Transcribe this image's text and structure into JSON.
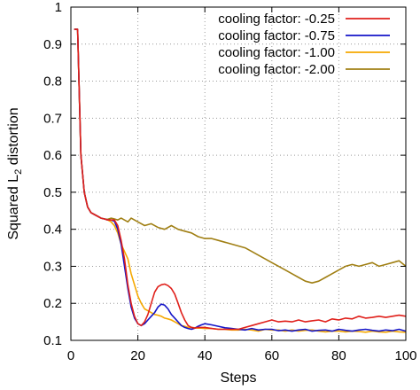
{
  "chart_data": {
    "type": "line",
    "title": "",
    "xlabel": "Steps",
    "ylabel": "Squared L₂ distortion",
    "xlim": [
      0,
      100
    ],
    "ylim": [
      0.1,
      1.0
    ],
    "xticks": [
      0,
      20,
      40,
      60,
      80,
      100
    ],
    "yticks": [
      0.1,
      0.2,
      0.3,
      0.4,
      0.5,
      0.6,
      0.7,
      0.8,
      0.9,
      1.0
    ],
    "ytick_labels": [
      "0.1",
      "0.2",
      "0.3",
      "0.4",
      "0.5",
      "0.6",
      "0.7",
      "0.8",
      "0.9",
      "1"
    ],
    "grid": "dotted",
    "legend_position": "top-right",
    "series": [
      {
        "name": "cooling factor: -0.25",
        "color": "#e0201b",
        "x": [
          1,
          2,
          3,
          4,
          5,
          6,
          7,
          8,
          9,
          10,
          11,
          12,
          13,
          14,
          15,
          16,
          17,
          18,
          19,
          20,
          21,
          22,
          23,
          24,
          25,
          26,
          27,
          28,
          29,
          30,
          31,
          32,
          33,
          34,
          35,
          36,
          37,
          38,
          39,
          40,
          42,
          44,
          46,
          48,
          50,
          52,
          54,
          56,
          58,
          60,
          62,
          64,
          66,
          68,
          70,
          72,
          74,
          76,
          78,
          80,
          82,
          84,
          86,
          88,
          90,
          92,
          94,
          96,
          98,
          100
        ],
        "y": [
          0.94,
          0.94,
          0.6,
          0.5,
          0.46,
          0.445,
          0.44,
          0.435,
          0.43,
          0.428,
          0.425,
          0.425,
          0.425,
          0.41,
          0.37,
          0.32,
          0.25,
          0.2,
          0.165,
          0.145,
          0.14,
          0.15,
          0.17,
          0.2,
          0.23,
          0.245,
          0.25,
          0.252,
          0.248,
          0.24,
          0.225,
          0.2,
          0.175,
          0.155,
          0.14,
          0.135,
          0.133,
          0.135,
          0.135,
          0.135,
          0.132,
          0.13,
          0.13,
          0.13,
          0.13,
          0.135,
          0.14,
          0.145,
          0.15,
          0.155,
          0.15,
          0.152,
          0.15,
          0.155,
          0.15,
          0.153,
          0.155,
          0.15,
          0.158,
          0.155,
          0.16,
          0.158,
          0.165,
          0.16,
          0.162,
          0.165,
          0.162,
          0.165,
          0.168,
          0.165
        ]
      },
      {
        "name": "cooling factor: -0.75",
        "color": "#1515c8",
        "x": [
          1,
          2,
          3,
          4,
          5,
          6,
          7,
          8,
          9,
          10,
          11,
          12,
          13,
          14,
          15,
          16,
          17,
          18,
          19,
          20,
          21,
          22,
          23,
          24,
          25,
          26,
          27,
          28,
          29,
          30,
          31,
          32,
          33,
          34,
          35,
          36,
          37,
          38,
          39,
          40,
          42,
          44,
          46,
          48,
          50,
          52,
          54,
          56,
          58,
          60,
          62,
          64,
          66,
          68,
          70,
          72,
          74,
          76,
          78,
          80,
          82,
          84,
          86,
          88,
          90,
          92,
          94,
          96,
          98,
          100
        ],
        "y": [
          0.94,
          0.94,
          0.6,
          0.5,
          0.46,
          0.445,
          0.44,
          0.435,
          0.43,
          0.428,
          0.425,
          0.425,
          0.422,
          0.4,
          0.36,
          0.3,
          0.24,
          0.19,
          0.16,
          0.145,
          0.14,
          0.145,
          0.155,
          0.165,
          0.175,
          0.19,
          0.198,
          0.195,
          0.185,
          0.17,
          0.16,
          0.15,
          0.14,
          0.135,
          0.132,
          0.13,
          0.133,
          0.138,
          0.142,
          0.145,
          0.142,
          0.138,
          0.134,
          0.132,
          0.13,
          0.128,
          0.132,
          0.128,
          0.13,
          0.13,
          0.126,
          0.128,
          0.125,
          0.128,
          0.13,
          0.125,
          0.127,
          0.128,
          0.125,
          0.13,
          0.127,
          0.125,
          0.128,
          0.13,
          0.127,
          0.125,
          0.128,
          0.126,
          0.13,
          0.125
        ]
      },
      {
        "name": "cooling factor: -1.00",
        "color": "#f5a800",
        "x": [
          1,
          2,
          3,
          4,
          5,
          6,
          7,
          8,
          9,
          10,
          11,
          12,
          13,
          14,
          15,
          16,
          17,
          18,
          19,
          20,
          21,
          22,
          23,
          24,
          25,
          26,
          27,
          28,
          29,
          30,
          31,
          32,
          33,
          34,
          35,
          36,
          37,
          38,
          39,
          40,
          42,
          44,
          46,
          48,
          50,
          52,
          54,
          56,
          58,
          60,
          62,
          64,
          66,
          68,
          70,
          72,
          74,
          76,
          78,
          80,
          82,
          84,
          86,
          88,
          90,
          92,
          94,
          96,
          98,
          100
        ],
        "y": [
          0.94,
          0.94,
          0.6,
          0.5,
          0.46,
          0.445,
          0.44,
          0.435,
          0.43,
          0.428,
          0.425,
          0.42,
          0.41,
          0.39,
          0.36,
          0.34,
          0.32,
          0.28,
          0.25,
          0.22,
          0.2,
          0.185,
          0.18,
          0.175,
          0.17,
          0.168,
          0.165,
          0.16,
          0.158,
          0.155,
          0.15,
          0.145,
          0.14,
          0.138,
          0.135,
          0.135,
          0.134,
          0.133,
          0.133,
          0.132,
          0.132,
          0.13,
          0.13,
          0.128,
          0.128,
          0.13,
          0.128,
          0.125,
          0.13,
          0.128,
          0.128,
          0.125,
          0.128,
          0.125,
          0.127,
          0.128,
          0.125,
          0.123,
          0.125,
          0.125,
          0.123,
          0.125,
          0.124,
          0.122,
          0.125,
          0.123,
          0.122,
          0.125,
          0.123,
          0.122
        ]
      },
      {
        "name": "cooling factor: -2.00",
        "color": "#a07f13",
        "x": [
          1,
          2,
          3,
          4,
          5,
          6,
          7,
          8,
          9,
          10,
          11,
          12,
          13,
          14,
          15,
          16,
          17,
          18,
          19,
          20,
          22,
          24,
          26,
          28,
          30,
          32,
          34,
          36,
          38,
          40,
          42,
          44,
          46,
          48,
          50,
          52,
          54,
          56,
          58,
          60,
          62,
          64,
          66,
          68,
          70,
          72,
          74,
          76,
          78,
          80,
          82,
          84,
          86,
          88,
          90,
          92,
          94,
          96,
          98,
          100
        ],
        "y": [
          0.94,
          0.94,
          0.6,
          0.5,
          0.46,
          0.445,
          0.44,
          0.435,
          0.43,
          0.428,
          0.427,
          0.43,
          0.428,
          0.425,
          0.43,
          0.425,
          0.42,
          0.43,
          0.425,
          0.42,
          0.41,
          0.415,
          0.405,
          0.4,
          0.41,
          0.4,
          0.395,
          0.39,
          0.38,
          0.375,
          0.375,
          0.37,
          0.365,
          0.36,
          0.355,
          0.35,
          0.34,
          0.33,
          0.32,
          0.31,
          0.3,
          0.29,
          0.28,
          0.27,
          0.26,
          0.255,
          0.26,
          0.27,
          0.28,
          0.29,
          0.3,
          0.305,
          0.3,
          0.305,
          0.31,
          0.3,
          0.305,
          0.31,
          0.315,
          0.3
        ]
      }
    ]
  }
}
